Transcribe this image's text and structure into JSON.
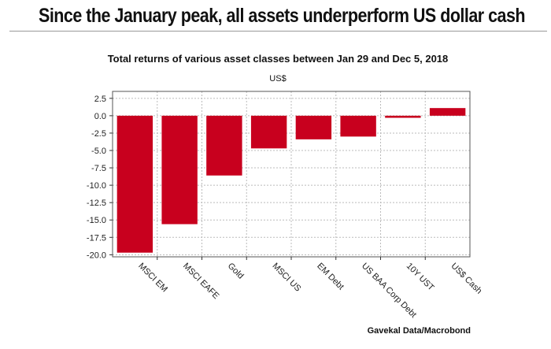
{
  "headline": "Since the January peak, all assets underperform US dollar cash",
  "chart_data": {
    "type": "bar",
    "title": "Total returns of various asset classes between Jan 29 and Dec 5, 2018",
    "unit_label": "US$",
    "source": "Gavekal Data/Macrobond",
    "categories": [
      "MSCI EM",
      "MSCI EAFE",
      "Gold",
      "MSCI US",
      "EM Debt",
      "US BAA Corp Debt",
      "10Y UST",
      "US$ Cash"
    ],
    "values": [
      -19.7,
      -15.6,
      -8.6,
      -4.7,
      -3.4,
      -3.0,
      -0.3,
      1.1
    ],
    "y_ticks": [
      2.5,
      0,
      -2.5,
      -5,
      -7.5,
      -10,
      -12.5,
      -15,
      -17.5,
      -20
    ],
    "y_tick_labels": [
      "2.5",
      "0.0",
      "-2.5",
      "-5.0",
      "-7.5",
      "-10.0",
      "-12.5",
      "-15.0",
      "-17.5",
      "-20.0"
    ],
    "ylim": [
      -20.3,
      3.5
    ],
    "grid": true,
    "bar_color": "#c8001e"
  }
}
